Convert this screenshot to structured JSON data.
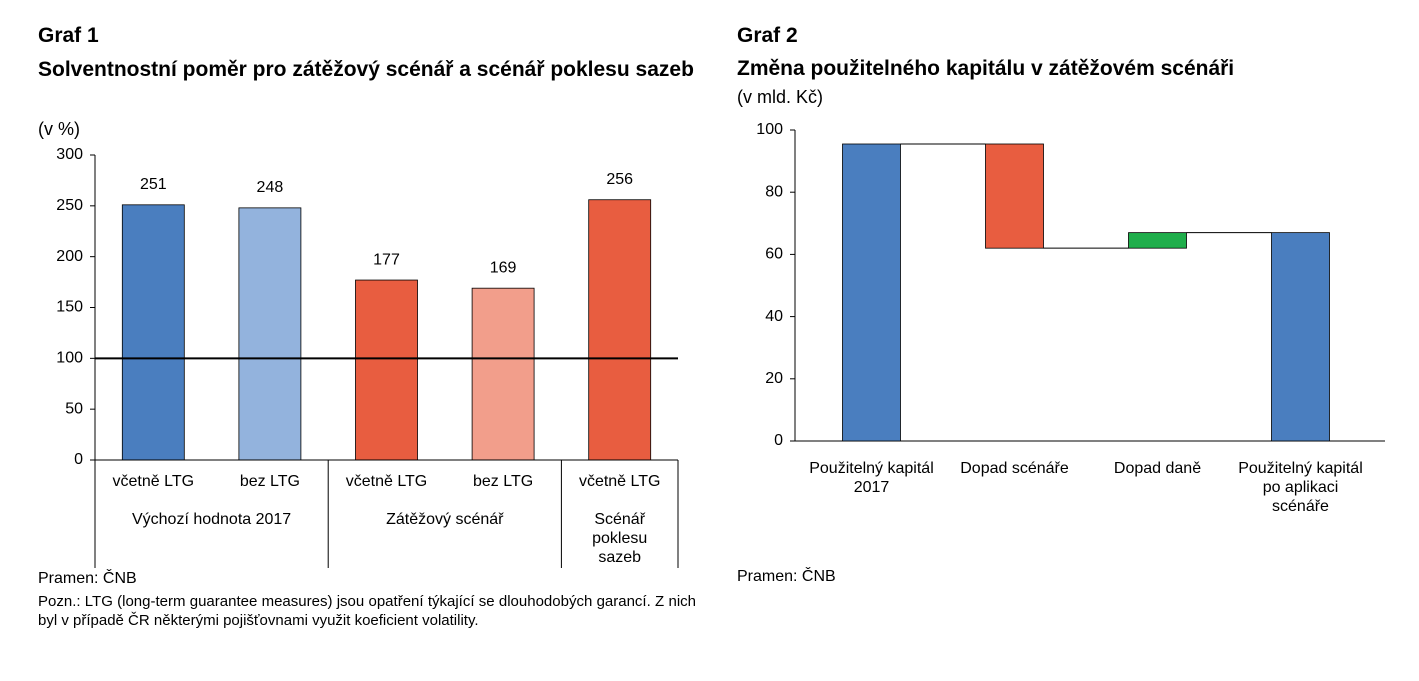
{
  "chart_data": [
    {
      "type": "grouped-category-bar",
      "title": "Graf 1",
      "subtitle": "Solventnostní poměr pro zátěžový scénář a scénář poklesu sazeb",
      "unit_label": "(v %)",
      "groups": [
        {
          "name": "Výchozí hodnota 2017",
          "categories": [
            "včetně LTG",
            "bez LTG"
          ],
          "values": [
            251,
            248
          ],
          "colors": [
            "#4a7ebf",
            "#93b3dd"
          ]
        },
        {
          "name": "Zátěžový scénář",
          "categories": [
            "včetně LTG",
            "bez LTG"
          ],
          "values": [
            177,
            169
          ],
          "colors": [
            "#e85d40",
            "#f29e8b"
          ]
        },
        {
          "name": "Scénář poklesu sazeb",
          "categories": [
            "včetně LTG"
          ],
          "values": [
            256
          ],
          "colors": [
            "#e85d40"
          ]
        }
      ],
      "reference_line": 100,
      "ylim": [
        0,
        300
      ],
      "yticks": [
        0,
        50,
        100,
        150,
        200,
        250,
        300
      ],
      "source": "Pramen: ČNB",
      "note": "Pozn.: LTG (long-term guarantee measures) jsou opatření týkající se dlouhodobých garancí. Z nich byl v případě ČR některými pojišťovnami využit koeficient volatility."
    },
    {
      "type": "waterfall",
      "title": "Graf 2",
      "subtitle": "Změna použitelného kapitálu v zátěžovém scénáři",
      "unit_label": "(v mld. Kč)",
      "categories": [
        "Použitelný kapitál 2017",
        "Dopad scénáře",
        "Dopad daně",
        "Použitelný kapitál po aplikaci scénáře"
      ],
      "values": [
        95.5,
        -33.5,
        5,
        67
      ],
      "measures": [
        "total",
        "relative",
        "relative",
        "total"
      ],
      "colors": [
        "#4a7ebf",
        "#e85d40",
        "#1fae4b",
        "#4a7ebf"
      ],
      "ylim": [
        0,
        100
      ],
      "yticks": [
        0,
        20,
        40,
        60,
        80,
        100
      ],
      "source": "Pramen: ČNB"
    }
  ]
}
